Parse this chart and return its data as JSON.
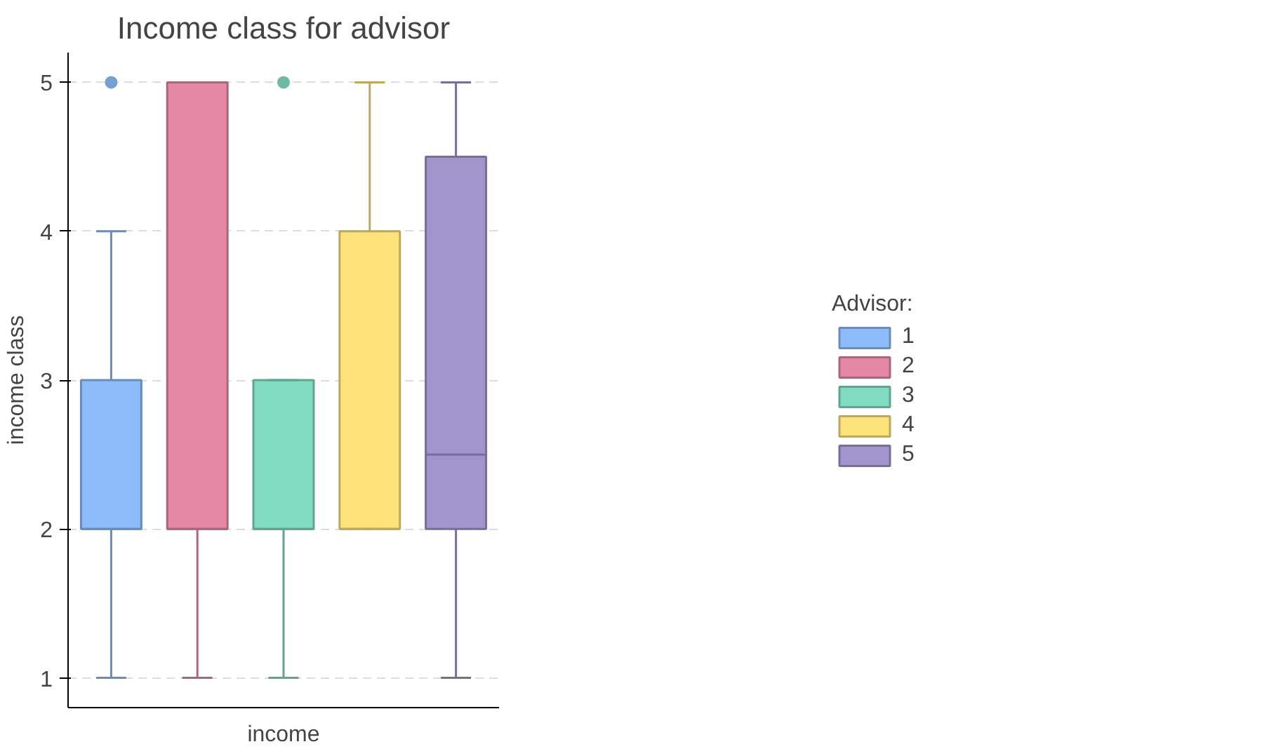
{
  "chart_data": {
    "type": "box",
    "title": "Income class for advisor",
    "xlabel": "income",
    "ylabel": "income class",
    "legend_title": "Advisor:",
    "categories": [
      null
    ],
    "series": [
      {
        "name": "1",
        "color": "#8bbcf9",
        "boxes": [
          {
            "low": 1,
            "q1": 2,
            "median": 2,
            "q3": 3,
            "high": 4,
            "outliers": [
              5
            ]
          }
        ]
      },
      {
        "name": "2",
        "color": "#e588a6",
        "boxes": [
          {
            "low": 1,
            "q1": 2,
            "median": 2,
            "q3": 5,
            "high": 5
          }
        ]
      },
      {
        "name": "3",
        "color": "#7fdcbf",
        "boxes": [
          {
            "low": 1,
            "q1": 2,
            "median": 2,
            "q3": 3,
            "high": 3,
            "outliers": [
              5
            ]
          }
        ]
      },
      {
        "name": "4",
        "color": "#fde27a",
        "boxes": [
          {
            "low": 2,
            "q1": 2,
            "median": 2,
            "q3": 4,
            "high": 5
          }
        ]
      },
      {
        "name": "5",
        "color": "#a095cc",
        "boxes": [
          {
            "low": 1,
            "q1": 2,
            "median": 2.5,
            "q3": 4.5,
            "high": 5
          }
        ]
      }
    ],
    "ylim": [
      0.8,
      5.2
    ],
    "yticks": [
      1,
      2,
      3,
      4,
      5
    ],
    "grid": "y",
    "legend": "right"
  }
}
